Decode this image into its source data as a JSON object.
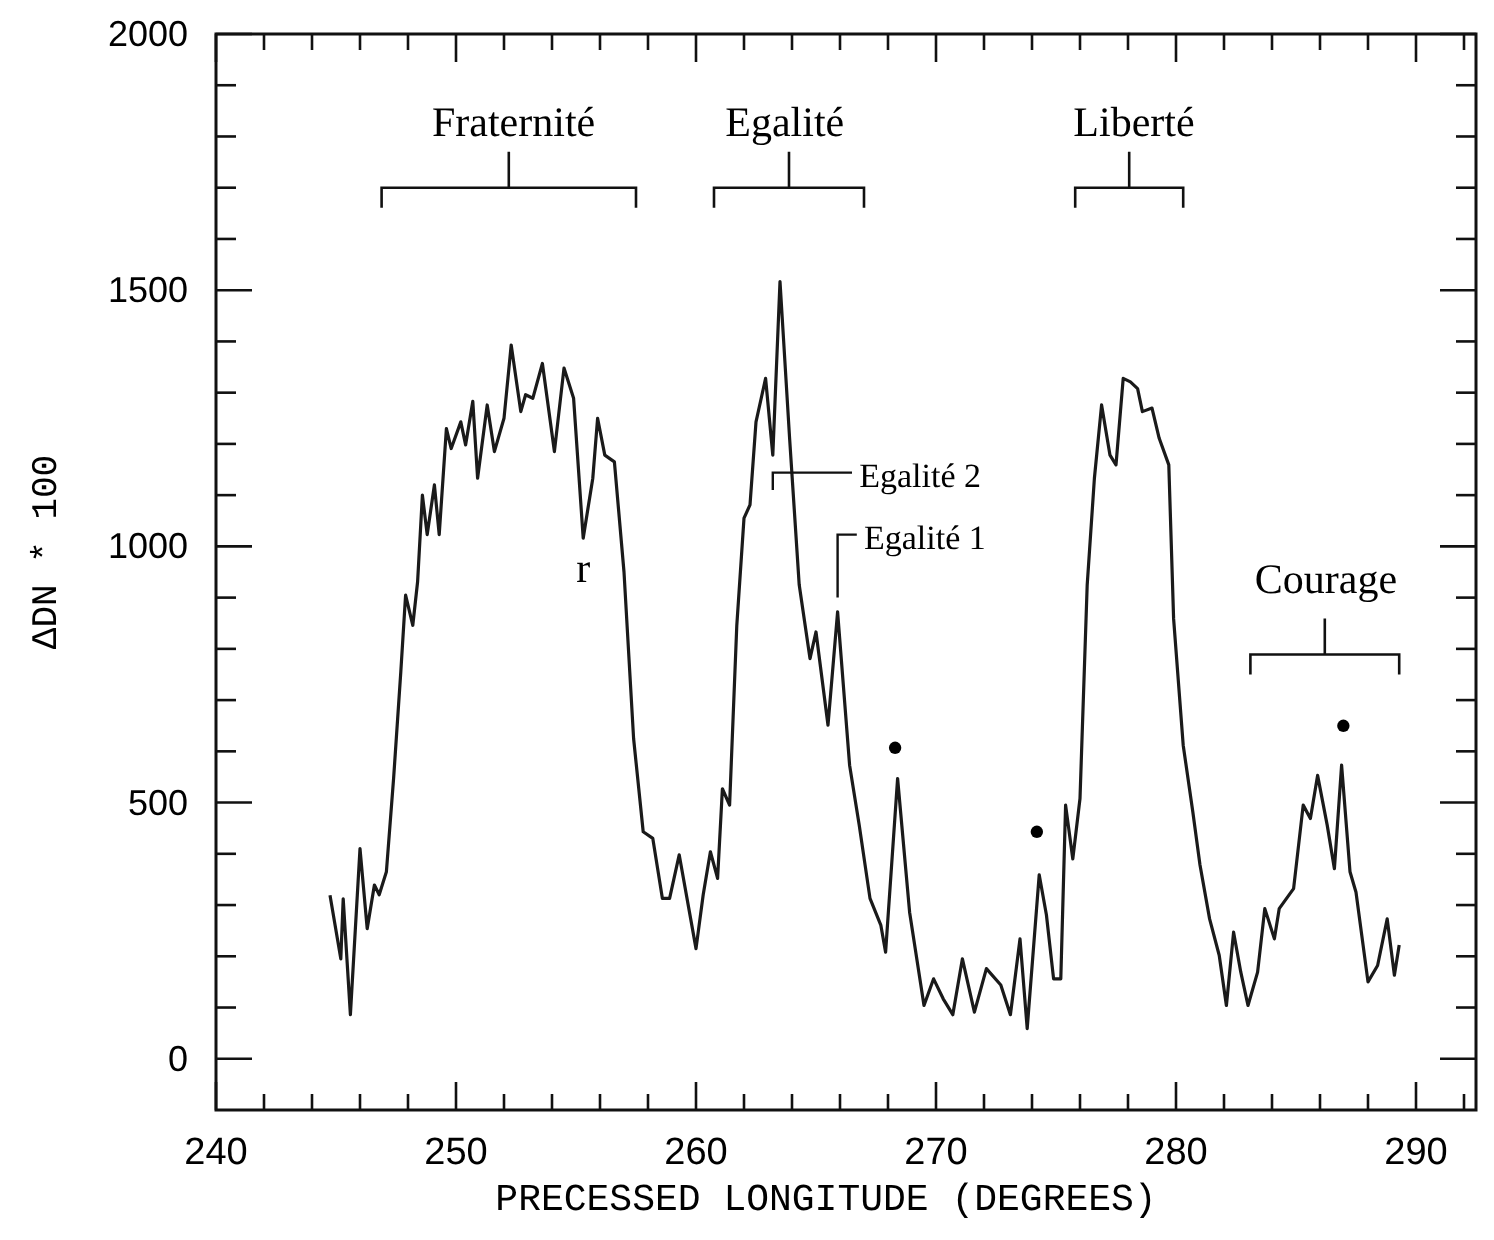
{
  "chart_data": {
    "type": "line",
    "xlabel": "PRECESSED LONGITUDE (DEGREES)",
    "ylabel": "ΔDN * 100",
    "xlim": [
      240,
      292.5
    ],
    "ylim": [
      -100,
      2000
    ],
    "xticks": [
      240,
      {
        "value": 242,
        "label": null
      },
      {
        "value": 244,
        "label": null
      },
      {
        "value": 246,
        "label": null
      },
      {
        "value": 248,
        "label": null
      },
      250,
      {
        "value": 252,
        "label": null
      },
      {
        "value": 254,
        "label": null
      },
      {
        "value": 256,
        "label": null
      },
      {
        "value": 258,
        "label": null
      },
      260,
      {
        "value": 262,
        "label": null
      },
      {
        "value": 264,
        "label": null
      },
      {
        "value": 266,
        "label": null
      },
      {
        "value": 268,
        "label": null
      },
      270,
      {
        "value": 272,
        "label": null
      },
      {
        "value": 274,
        "label": null
      },
      {
        "value": 276,
        "label": null
      },
      {
        "value": 278,
        "label": null
      },
      280,
      {
        "value": 282,
        "label": null
      },
      {
        "value": 284,
        "label": null
      },
      {
        "value": 286,
        "label": null
      },
      {
        "value": 288,
        "label": null
      },
      290,
      {
        "value": 292,
        "label": null
      }
    ],
    "yticks": [
      0,
      {
        "value": 100,
        "label": null
      },
      {
        "value": 200,
        "label": null
      },
      {
        "value": 300,
        "label": null
      },
      {
        "value": 400,
        "label": null
      },
      500,
      {
        "value": 600,
        "label": null
      },
      {
        "value": 700,
        "label": null
      },
      {
        "value": 800,
        "label": null
      },
      {
        "value": 900,
        "label": null
      },
      1000,
      {
        "value": 1100,
        "label": null
      },
      {
        "value": 1200,
        "label": null
      },
      {
        "value": 1300,
        "label": null
      },
      {
        "value": 1400,
        "label": null
      },
      1500,
      {
        "value": 1600,
        "label": null
      },
      {
        "value": 1700,
        "label": null
      },
      {
        "value": 1800,
        "label": null
      },
      {
        "value": 1900,
        "label": null
      },
      2000
    ],
    "grid": false,
    "marker": "none",
    "line_style": "solid",
    "series": [
      {
        "color": "#1a1a1a",
        "x": [
          244.75,
          245.2,
          245.3,
          245.6,
          246,
          246.3,
          246.6,
          246.8,
          247.1,
          247.4,
          247.7,
          247.9,
          248.2,
          248.4,
          248.6,
          248.8,
          249.1,
          249.3,
          249.6,
          249.8,
          250.2,
          250.4,
          250.7,
          250.9,
          251.3,
          251.6,
          252,
          252.3,
          252.7,
          252.9,
          253.2,
          253.6,
          254.1,
          254.5,
          254.9,
          255.3,
          255.7,
          255.9,
          256.2,
          256.6,
          257,
          257.4,
          257.8,
          258.2,
          258.6,
          258.9,
          259.3,
          260,
          260.3,
          260.6,
          260.9,
          261.1,
          261.4,
          261.7,
          262,
          262.25,
          262.5,
          262.9,
          263.2,
          263.5,
          263.9,
          264.3,
          264.75,
          265,
          265.5,
          265.9,
          266.4,
          266.8,
          267.25,
          267.7,
          267.9,
          268.4,
          268.9,
          269.5,
          269.9,
          270.3,
          270.7,
          271.1,
          271.6,
          272.1,
          272.7,
          273.1,
          273.5,
          273.8,
          274.3,
          274.6,
          274.9,
          275.2,
          275.4,
          275.7,
          276,
          276.3,
          276.6,
          276.9,
          277.25,
          277.5,
          277.8,
          278.1,
          278.4,
          278.6,
          279,
          279.3,
          279.7,
          279.9,
          280.3,
          280.7,
          281,
          281.4,
          281.8,
          282.1,
          282.4,
          282.7,
          283,
          283.4,
          283.7,
          284.1,
          284.3,
          284.9,
          285.3,
          285.6,
          285.9,
          286.3,
          286.6,
          286.9,
          287.25,
          287.5,
          288,
          288.4,
          288.8,
          289.1,
          289.3
        ],
        "values": [
          319,
          195,
          312,
          86,
          410,
          254,
          339,
          320,
          365,
          547,
          755,
          905,
          846,
          931,
          1100,
          1023,
          1120,
          1023,
          1230,
          1191,
          1243,
          1198,
          1283,
          1133,
          1276,
          1185,
          1250,
          1393,
          1263,
          1296,
          1289,
          1357,
          1185,
          1348,
          1289,
          1016,
          1133,
          1250,
          1178,
          1165,
          950,
          625,
          443,
          430,
          313,
          313,
          398,
          215,
          320,
          404,
          352,
          527,
          495,
          846,
          1055,
          1081,
          1243,
          1328,
          1178,
          1517,
          1211,
          925,
          781,
          833,
          651,
          872,
          573,
          456,
          313,
          261,
          208,
          547,
          286,
          104,
          156,
          117,
          86,
          195,
          91,
          176,
          144,
          86,
          234,
          59,
          359,
          281,
          156,
          156,
          495,
          390,
          508,
          925,
          1133,
          1276,
          1178,
          1159,
          1328,
          1321,
          1308,
          1263,
          1270,
          1211,
          1159,
          859,
          612,
          482,
          378,
          273,
          202,
          104,
          247,
          169,
          104,
          169,
          293,
          234,
          293,
          332,
          495,
          469,
          553,
          456,
          371,
          573,
          365,
          325,
          150,
          182,
          273,
          163,
          222
        ]
      }
    ],
    "annotations": [
      "Fraternité",
      "Egalité",
      "Liberté",
      "Courage",
      "r",
      "Egalité 2",
      "Egalité 1",
      "•",
      "•",
      "•"
    ]
  }
}
